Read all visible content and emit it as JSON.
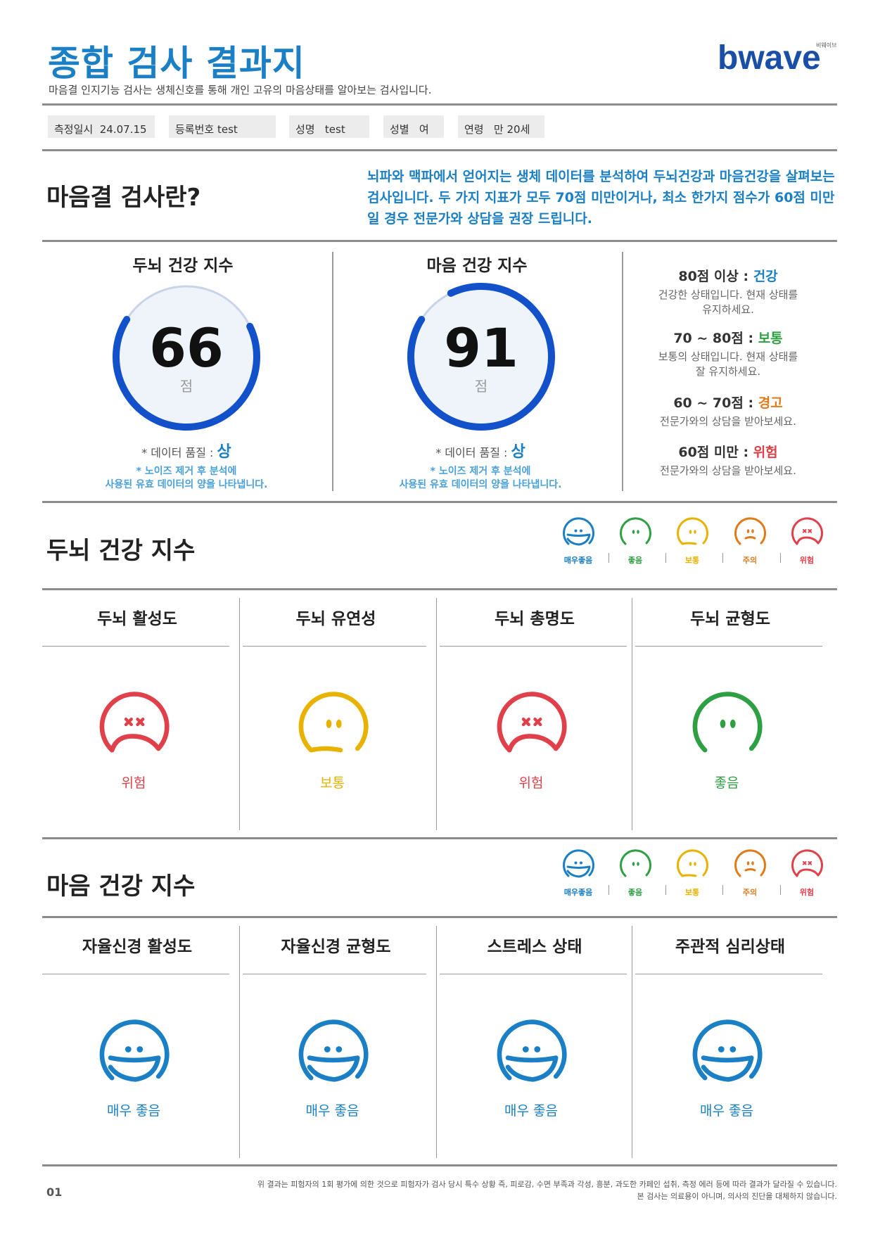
{
  "header": {
    "title": "종합 검사 결과지",
    "subtitle": "마음결 인지기능 검사는 생체신호를 통해 개인 고유의 마음상태를 알아보는 검사입니다.",
    "logo_text": "bwave",
    "logo_small": "비웨이브"
  },
  "info": {
    "date_label": "측정일시",
    "date_value": "24.07.15",
    "reg_label": "등록번호",
    "reg_value": "test",
    "name_label": "성명",
    "name_value": "test",
    "gender_label": "성별",
    "gender_value": "여",
    "age_label": "연령",
    "age_value": "만 20세"
  },
  "about": {
    "heading": "마음결 검사란?",
    "text": "뇌파와 맥파에서 얻어지는 생체 데이터를 분석하여 두뇌건강과 마음건강을 살펴보는 검사입니다. 두 가지 지표가 모두 70점 미만이거나, 최소 한가지 점수가 60점 미만일 경우 전문가와 상담을 권장 드립니다."
  },
  "indices": [
    {
      "title": "두뇌 건강 지수",
      "score": "66",
      "score_value": 66,
      "unit": "점",
      "quality_label": "* 데이터 품질 :",
      "quality_value": "상",
      "note_line1": "* 노이즈 제거 후 분석에",
      "note_line2": "사용된 유효 데이터의 양을 나타냅니다."
    },
    {
      "title": "마음 건강 지수",
      "score": "91",
      "score_value": 91,
      "unit": "점",
      "quality_label": "* 데이터 품질 :",
      "quality_value": "상",
      "note_line1": "* 노이즈 제거 후 분석에",
      "note_line2": "사용된 유효 데이터의 양을 나타냅니다."
    }
  ],
  "score_legend": [
    {
      "range": "80점 이상 :",
      "status": "건강",
      "color": "#1a7fc4",
      "desc1": "건강한 상태입니다. 현재 상태를",
      "desc2": "유지하세요."
    },
    {
      "range": "70 ~ 80점 :",
      "status": "보통",
      "color": "#2ea043",
      "desc1": "보통의 상태입니다. 현재 상태를",
      "desc2": "잘 유지하세요."
    },
    {
      "range": "60 ~ 70점 :",
      "status": "경고",
      "color": "#e07b1a",
      "desc1": "전문가와의 상담을 받아보세요.",
      "desc2": ""
    },
    {
      "range": "60점 미만 :",
      "status": "위험",
      "color": "#e0404a",
      "desc1": "전문가와의 상담을 받아보세요.",
      "desc2": ""
    }
  ],
  "face_legend": [
    {
      "label": "매우좋음",
      "color": "#1a7fc4",
      "icon": "very-good-face-icon"
    },
    {
      "label": "좋음",
      "color": "#2ea043",
      "icon": "good-face-icon"
    },
    {
      "label": "보통",
      "color": "#e8b300",
      "icon": "normal-face-icon"
    },
    {
      "label": "주의",
      "color": "#e07b1a",
      "icon": "caution-face-icon"
    },
    {
      "label": "위험",
      "color": "#e0404a",
      "icon": "danger-face-icon"
    }
  ],
  "brain": {
    "heading": "두뇌 건강 지수",
    "cards": [
      {
        "title": "두뇌 활성도",
        "label": "위험",
        "level": "danger"
      },
      {
        "title": "두뇌 유연성",
        "label": "보통",
        "level": "normal"
      },
      {
        "title": "두뇌 총명도",
        "label": "위험",
        "level": "danger"
      },
      {
        "title": "두뇌 균형도",
        "label": "좋음",
        "level": "good"
      }
    ]
  },
  "mind": {
    "heading": "마음 건강 지수",
    "cards": [
      {
        "title": "자율신경 활성도",
        "label": "매우 좋음",
        "level": "very-good"
      },
      {
        "title": "자율신경 균형도",
        "label": "매우 좋음",
        "level": "very-good"
      },
      {
        "title": "스트레스 상태",
        "label": "매우 좋음",
        "level": "very-good"
      },
      {
        "title": "주관적 심리상태",
        "label": "매우 좋음",
        "level": "very-good"
      }
    ]
  },
  "footer": {
    "page": "01",
    "line1": "위 결과는 피험자의 1회 평가에 의한 것으로 피험자가 검사 당시 특수 상황 즉, 피로감, 수면 부족과 각성, 흥분, 과도한 카페인 섭취, 측정 에러 등에 따라 결과가 달라질 수 있습니다.",
    "line2": "본 검사는 의료용이 아니며, 의사의 진단을 대체하지 않습니다."
  }
}
